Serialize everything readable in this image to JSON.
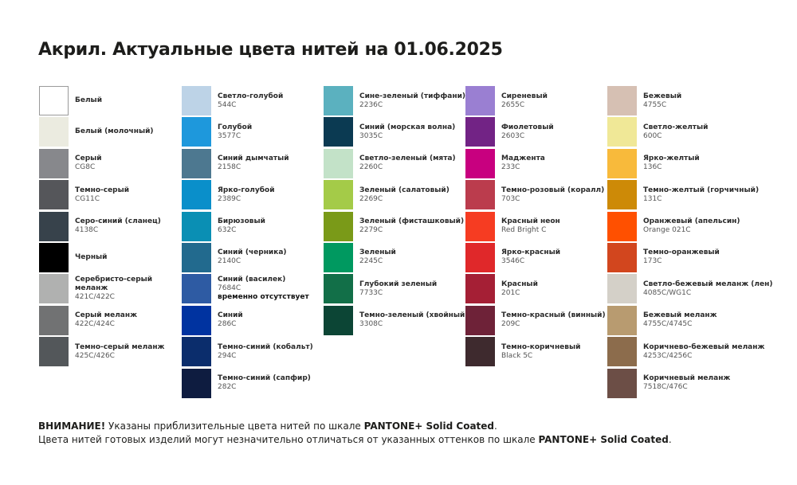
{
  "title": "Акрил. Актуальные цвета нитей на 01.06.2025",
  "columns": [
    [
      {
        "name": "Белый",
        "code": "",
        "color": "#ffffff"
      },
      {
        "name": "Белый (молочный)",
        "code": "",
        "color": "#ebebe0"
      },
      {
        "name": "Серый",
        "code": "CG8C",
        "color": "#87888c"
      },
      {
        "name": "Темно-серый",
        "code": "CG11C",
        "color": "#55565a"
      },
      {
        "name": "Серо-синий (сланец)",
        "code": "4138C",
        "color": "#37424b"
      },
      {
        "name": "Черный",
        "code": "",
        "color": "#000000"
      },
      {
        "name": "Серебристо-серый меланж",
        "code": "421C/422C",
        "color": "#b0b1b0"
      },
      {
        "name": "Серый меланж",
        "code": "422C/424C",
        "color": "#717273"
      },
      {
        "name": "Темно-серый меланж",
        "code": "425C/426C",
        "color": "#53575a"
      }
    ],
    [
      {
        "name": "Светло-голубой",
        "code": "544C",
        "color": "#bdd3e7"
      },
      {
        "name": "Голубой",
        "code": "3577C",
        "color": "#1e98dc"
      },
      {
        "name": "Синий дымчатый",
        "code": "2158C",
        "color": "#4d7890"
      },
      {
        "name": "Ярко-голубой",
        "code": "2389C",
        "color": "#0a8fca"
      },
      {
        "name": "Бирюзовый",
        "code": "632C",
        "color": "#0a8fb4"
      },
      {
        "name": "Синий (черника)",
        "code": "2140C",
        "color": "#226a8e"
      },
      {
        "name": "Синий (василек)",
        "code": "7684C",
        "note": "временно отсутствует",
        "color": "#2e5ba3"
      },
      {
        "name": "Синий",
        "code": "286C",
        "color": "#0033a0"
      },
      {
        "name": "Темно-синий (кобальт)",
        "code": "294C",
        "color": "#0b2d6c"
      },
      {
        "name": "Темно-синий (сапфир)",
        "code": "282C",
        "color": "#0e1c40"
      }
    ],
    [
      {
        "name": "Сине-зеленый (тиффани)",
        "code": "2236C",
        "color": "#5bb1bf"
      },
      {
        "name": "Синий (морская волна)",
        "code": "3035C",
        "color": "#0b3a52"
      },
      {
        "name": "Светло-зеленый (мята)",
        "code": "2260C",
        "color": "#c3e2c8"
      },
      {
        "name": "Зеленый (салатовый)",
        "code": "2269C",
        "color": "#a4cb48"
      },
      {
        "name": "Зеленый (фисташковый)",
        "code": "2279C",
        "color": "#7a9a18"
      },
      {
        "name": "Зеленый",
        "code": "2245C",
        "color": "#009960"
      },
      {
        "name": "Глубокий зеленый",
        "code": "7733C",
        "color": "#126f48"
      },
      {
        "name": "Темно-зеленый (хвойный)",
        "code": "3308C",
        "color": "#0c4535"
      }
    ],
    [
      {
        "name": "Сиреневый",
        "code": "2655C",
        "color": "#9a7fd2"
      },
      {
        "name": "Фиолетовый",
        "code": "2603C",
        "color": "#722385"
      },
      {
        "name": "Маджента",
        "code": "233C",
        "color": "#c8007f"
      },
      {
        "name": "Темно-розовый (коралл)",
        "code": "703C",
        "color": "#bb3c4d"
      },
      {
        "name": "Красный неон",
        "code": "Red Bright C",
        "color": "#f63c22"
      },
      {
        "name": "Ярко-красный",
        "code": "3546C",
        "color": "#e0282a"
      },
      {
        "name": "Красный",
        "code": "201C",
        "color": "#a51f35"
      },
      {
        "name": "Темно-красный (винный)",
        "code": "209C",
        "color": "#6e2238"
      },
      {
        "name": "Темно-коричневый",
        "code": "Black 5C",
        "color": "#3e2a2e"
      }
    ],
    [
      {
        "name": "Бежевый",
        "code": "4755C",
        "color": "#d6c0b3"
      },
      {
        "name": "Светло-желтый",
        "code": "600C",
        "color": "#f0e897"
      },
      {
        "name": "Ярко-желтый",
        "code": "136C",
        "color": "#f8ba3b"
      },
      {
        "name": "Темно-желтый (горчичный)",
        "code": "131C",
        "color": "#cd8a07"
      },
      {
        "name": "Оранжевый (апельсин)",
        "code": "Orange 021C",
        "color": "#ff5000"
      },
      {
        "name": "Темно-оранжевый",
        "code": "173C",
        "color": "#d2461e"
      },
      {
        "name": "Светло-бежевый меланж (лен)",
        "code": "4085C/WG1C",
        "color": "#d4d0c8"
      },
      {
        "name": "Бежевый меланж",
        "code": "4755C/4745C",
        "color": "#b89b70"
      },
      {
        "name": "Коричнево-бежевый меланж",
        "code": "4253C/4256C",
        "color": "#8c6c4c"
      },
      {
        "name": "Коричневый меланж",
        "code": "7518C/476C",
        "color": "#6c4e46"
      }
    ]
  ],
  "footer": {
    "warning_label": "ВНИМАНИЕ!",
    "line1_text": " Указаны приблизительные цвета нитей по шкале ",
    "scale_name": "PANTONE+ Solid Coated",
    "line1_end": ".",
    "line2_text": "Цвета нитей готовых изделий могут незначительно отличаться от указанных оттенков по шкале ",
    "line2_scale": "PANTONE+ Solid Coated",
    "line2_end": "."
  }
}
